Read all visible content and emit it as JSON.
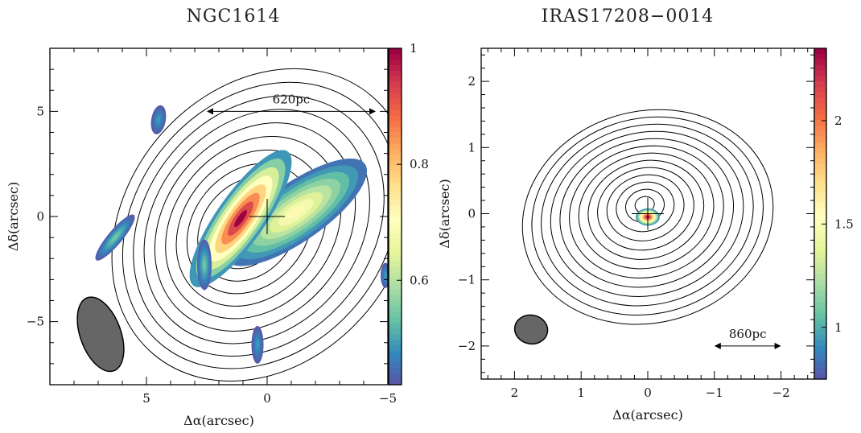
{
  "chart_data": [
    {
      "type": "heatmap",
      "title": "NGC1614",
      "xlabel": "Δα(arcsec)",
      "ylabel": "Δδ(arcsec)",
      "xlim": [
        9,
        -5
      ],
      "ylim": [
        -8,
        8
      ],
      "xticks": [
        5,
        0,
        -5
      ],
      "yticks": [
        5,
        0,
        -5
      ],
      "colorbar": {
        "range": [
          0.42,
          1.0
        ],
        "ticks": [
          1,
          0.8,
          0.6
        ],
        "cmap": "Spectral_r"
      },
      "scale_bar": {
        "label": "620pc",
        "x_from": 2.5,
        "x_to": -4.5,
        "y": 5
      },
      "beam": {
        "x": 6.9,
        "y": -5.6,
        "major": 3.7,
        "minor": 1.4,
        "pa_deg": 20
      },
      "center_marker": {
        "x": 0,
        "y": 0
      },
      "contour_levels": 12,
      "blobs": [
        {
          "x": -1.2,
          "y": 0.2,
          "a": 1.2,
          "b": 4.0,
          "pa": 55,
          "peak": 0.72
        },
        {
          "x": 1.1,
          "y": -0.1,
          "a": 1.0,
          "b": 3.9,
          "pa": 35,
          "peak": 1.0
        },
        {
          "x": 4.5,
          "y": 4.6,
          "a": 0.3,
          "b": 0.7,
          "pa": 10,
          "peak": 0.5
        },
        {
          "x": 6.3,
          "y": -1.0,
          "a": 0.3,
          "b": 1.4,
          "pa": 40,
          "peak": 0.55
        },
        {
          "x": 2.6,
          "y": -2.3,
          "a": 0.3,
          "b": 1.2,
          "pa": 0,
          "peak": 0.55
        },
        {
          "x": 0.4,
          "y": -6.1,
          "a": 0.25,
          "b": 0.9,
          "pa": 0,
          "peak": 0.5
        },
        {
          "x": -4.9,
          "y": -2.8,
          "a": 0.2,
          "b": 0.6,
          "pa": 0,
          "peak": 0.5
        }
      ]
    },
    {
      "type": "heatmap",
      "title": "IRAS17208−0014",
      "xlabel": "Δα(arcsec)",
      "ylabel": "Δδ(arcsec)",
      "xlim": [
        2.5,
        -2.5
      ],
      "ylim": [
        -2.5,
        2.5
      ],
      "xticks": [
        2,
        1,
        0,
        -1,
        -2
      ],
      "yticks": [
        2,
        1,
        0,
        -1,
        -2
      ],
      "colorbar": {
        "range": [
          0.75,
          2.35
        ],
        "ticks": [
          2,
          1.5,
          1
        ],
        "cmap": "Spectral_r"
      },
      "scale_bar": {
        "label": "860pc",
        "x_from": -1.0,
        "x_to": -2.0,
        "y": -2
      },
      "beam": {
        "x": 1.75,
        "y": -1.75,
        "major": 0.5,
        "minor": 0.36,
        "pa_deg": 100
      },
      "center_marker": {
        "x": 0,
        "y": 0
      },
      "contour_levels": 13,
      "blobs": [
        {
          "x": 0.0,
          "y": -0.05,
          "a": 0.18,
          "b": 0.13,
          "pa": 0,
          "peak": 2.35
        }
      ]
    }
  ]
}
